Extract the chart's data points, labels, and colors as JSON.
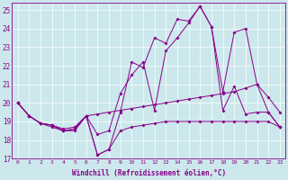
{
  "xlabel": "Windchill (Refroidissement éolien,°C)",
  "ylabel": "",
  "bg_color": "#cce8ec",
  "line_color": "#880088",
  "xlim": [
    -0.5,
    23.5
  ],
  "ylim": [
    17,
    25.4
  ],
  "yticks": [
    17,
    18,
    19,
    20,
    21,
    22,
    23,
    24,
    25
  ],
  "xticks": [
    0,
    1,
    2,
    3,
    4,
    5,
    6,
    7,
    8,
    9,
    10,
    11,
    12,
    13,
    14,
    15,
    16,
    17,
    18,
    19,
    20,
    21,
    22,
    23
  ],
  "lines": [
    {
      "x": [
        0,
        1,
        2,
        3,
        4,
        5,
        6,
        7,
        8,
        9,
        10,
        11,
        12,
        13,
        14,
        15,
        16,
        17,
        18,
        19,
        20,
        21,
        22,
        23
      ],
      "y": [
        20.0,
        19.3,
        18.9,
        18.8,
        18.5,
        18.6,
        19.3,
        17.2,
        17.5,
        19.5,
        22.2,
        21.9,
        23.5,
        23.2,
        24.5,
        24.4,
        25.2,
        24.1,
        19.6,
        20.9,
        19.4,
        19.5,
        19.5,
        18.7
      ]
    },
    {
      "x": [
        0,
        1,
        2,
        3,
        4,
        5,
        6,
        7,
        8,
        9,
        10,
        11,
        12,
        13,
        14,
        15,
        16,
        17,
        18,
        19,
        20,
        21,
        22,
        23
      ],
      "y": [
        20.0,
        19.3,
        18.9,
        18.8,
        18.5,
        18.6,
        19.3,
        18.3,
        18.5,
        20.5,
        21.5,
        22.2,
        19.6,
        22.8,
        23.5,
        24.3,
        25.2,
        24.1,
        20.6,
        23.8,
        24.0,
        21.0,
        19.5,
        18.7
      ]
    },
    {
      "x": [
        0,
        1,
        2,
        3,
        4,
        5,
        6,
        7,
        8,
        9,
        10,
        11,
        12,
        13,
        14,
        15,
        16,
        17,
        18,
        19,
        20,
        21,
        22,
        23
      ],
      "y": [
        20.0,
        19.3,
        18.9,
        18.8,
        18.6,
        18.7,
        19.3,
        19.4,
        19.5,
        19.6,
        19.7,
        19.8,
        19.9,
        20.0,
        20.1,
        20.2,
        20.3,
        20.4,
        20.5,
        20.6,
        20.8,
        21.0,
        20.3,
        19.5
      ]
    },
    {
      "x": [
        0,
        1,
        2,
        3,
        4,
        5,
        6,
        7,
        8,
        9,
        10,
        11,
        12,
        13,
        14,
        15,
        16,
        17,
        18,
        19,
        20,
        21,
        22,
        23
      ],
      "y": [
        20.0,
        19.3,
        18.9,
        18.7,
        18.5,
        18.5,
        19.3,
        17.2,
        17.5,
        18.5,
        18.7,
        18.8,
        18.9,
        19.0,
        19.0,
        19.0,
        19.0,
        19.0,
        19.0,
        19.0,
        19.0,
        19.0,
        19.0,
        18.7
      ]
    }
  ]
}
